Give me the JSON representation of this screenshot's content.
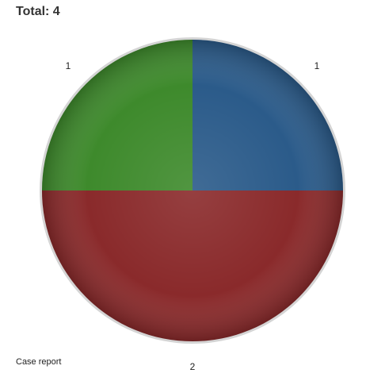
{
  "chart_data": {
    "type": "pie",
    "title": "Total: 4",
    "series": [
      {
        "name": "Case report",
        "slices": [
          {
            "value": 1,
            "label": "1",
            "color": "#2b5b8a"
          },
          {
            "value": 2,
            "label": "2",
            "color": "#8a2a2b"
          },
          {
            "value": 1,
            "label": "1",
            "color": "#3e8a2c"
          }
        ]
      }
    ],
    "legend": [
      "Case report"
    ],
    "legend_position": "bottom-left",
    "start_angle": "top",
    "direction": "clockwise"
  }
}
